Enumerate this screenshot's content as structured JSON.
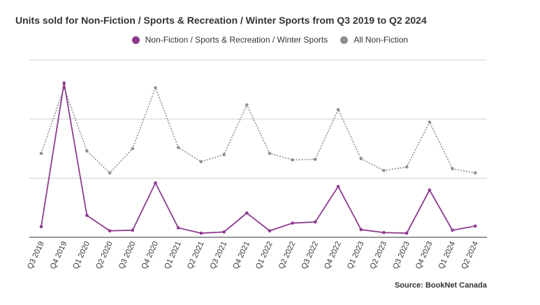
{
  "chart_data": {
    "type": "line",
    "title": "Units sold for Non-Fiction / Sports & Recreation / Winter Sports from Q3 2019 to Q2 2024",
    "categories": [
      "Q3 2019",
      "Q4 2019",
      "Q1 2020",
      "Q2 2020",
      "Q3 2020",
      "Q4 2020",
      "Q1 2021",
      "Q2 2021",
      "Q3 2021",
      "Q4 2021",
      "Q1 2022",
      "Q2 2022",
      "Q3 2022",
      "Q4 2022",
      "Q1 2023",
      "Q2 2023",
      "Q3 2023",
      "Q4 2023",
      "Q1 2024",
      "Q2 2024"
    ],
    "series": [
      {
        "name": "Non-Fiction / Sports & Recreation / Winter Sports",
        "color": "#8e3a91",
        "style": "solid",
        "values": [
          18,
          261,
          37,
          11,
          12,
          92,
          16,
          7,
          9,
          41,
          11,
          24,
          26,
          86,
          13,
          8,
          7,
          80,
          12,
          19
        ]
      },
      {
        "name": "All Non-Fiction",
        "color": "#8f8f8f",
        "style": "dotted",
        "values": [
          142,
          253,
          146,
          109,
          150,
          253,
          152,
          128,
          140,
          224,
          142,
          131,
          132,
          216,
          133,
          113,
          119,
          195,
          116,
          109
        ]
      }
    ],
    "ylim": [
      0,
      300
    ],
    "grid": true,
    "legend_position": "top-center",
    "source": "Source: BookNet Canada"
  }
}
